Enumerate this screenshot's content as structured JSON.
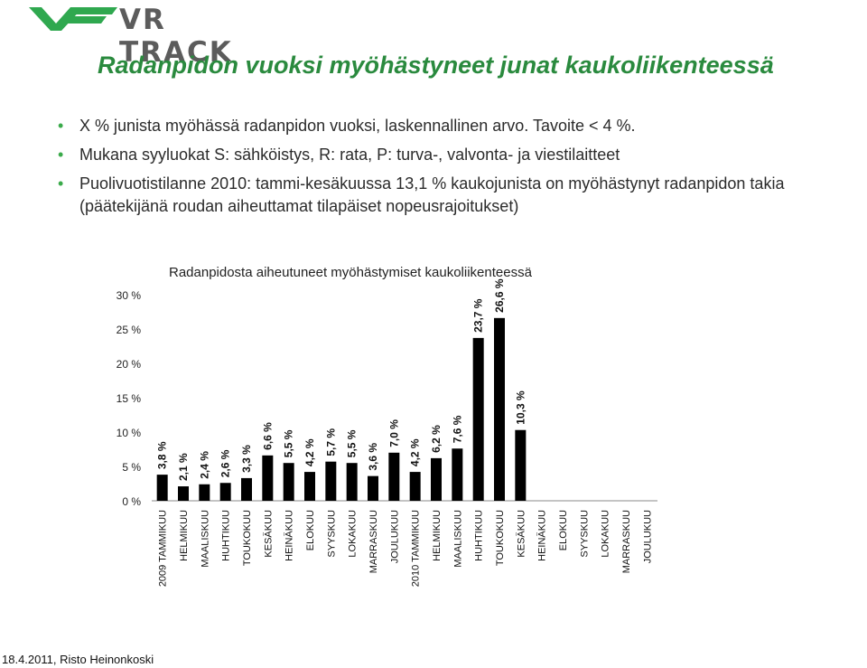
{
  "logo": {
    "text": "VR TRACK"
  },
  "title": "Radanpidon vuoksi myöhästyneet junat kaukoliikenteessä",
  "bullets": [
    "X % junista myöhässä radanpidon vuoksi, laskennallinen arvo. Tavoite < 4 %.",
    "Mukana syyluokat S: sähköistys, R: rata, P: turva-, valvonta- ja viestilaitteet",
    "Puolivuotistilanne 2010: tammi-kesäkuussa 13,1 % kaukojunista on myöhästynyt radanpidon takia (päätekijänä roudan aiheuttamat tilapäiset nopeusrajoitukset)"
  ],
  "colors": {
    "title": "#2a8a3e",
    "bullet": "#3aaa4a",
    "bar": "#000000"
  },
  "chart_data": {
    "type": "bar",
    "title": "Radanpidosta aiheutuneet myöhästymiset kaukoliikenteessä",
    "ylim": [
      0,
      30
    ],
    "yticks": [
      0,
      5,
      10,
      15,
      20,
      25,
      30
    ],
    "ytick_labels": [
      "0 %",
      "5 %",
      "10 %",
      "15 %",
      "20 %",
      "25 %",
      "30 %"
    ],
    "grid": false,
    "legend": "none",
    "categories": [
      "2009 TAMMIKUU",
      "HELMIKUU",
      "MAALISKUU",
      "HUHTIKUU",
      "TOUKOKUU",
      "KESÄKUU",
      "HEINÄKUU",
      "ELOKUU",
      "SYYSKUU",
      "LOKAKUU",
      "MARRASKUU",
      "JOULUKUU",
      "2010 TAMMIKUU",
      "HELMIKUU",
      "MAALISKUU",
      "HUHTIKUU",
      "TOUKOKUU",
      "KESÄKUU",
      "HEINÄKUU",
      "ELOKUU",
      "SYYSKUU",
      "LOKAKUU",
      "MARRASKUU",
      "JOULUKUU"
    ],
    "values": [
      3.8,
      2.1,
      2.4,
      2.6,
      3.3,
      6.6,
      5.5,
      4.2,
      5.7,
      5.5,
      3.6,
      7.0,
      4.2,
      6.2,
      7.6,
      23.7,
      26.6,
      10.3,
      null,
      null,
      null,
      null,
      null,
      null
    ],
    "data_labels": [
      "3,8 %",
      "2,1 %",
      "2,4 %",
      "2,6 %",
      "3,3 %",
      "6,6 %",
      "5,5 %",
      "4,2 %",
      "5,7 %",
      "5,5 %",
      "3,6 %",
      "7,0 %",
      "4,2 %",
      "6,2 %",
      "7,6 %",
      "23,7 %",
      "26,6 %",
      "10,3 %",
      "",
      "",
      "",
      "",
      "",
      ""
    ]
  },
  "footer": "18.4.2011, Risto Heinonkoski"
}
